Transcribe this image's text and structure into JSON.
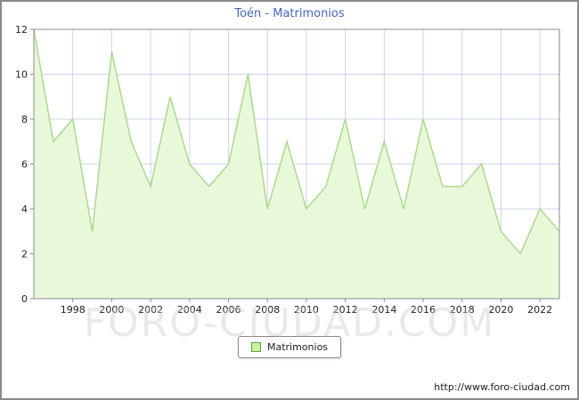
{
  "watermark": "FORO-CIUDAD.COM",
  "footer": {
    "url": "http://www.foro-ciudad.com"
  },
  "legend": {
    "label": "Matrimonios"
  },
  "colors": {
    "grid": "#ccd4ee",
    "line": "#a6d88a",
    "fill": "#e9f8d8",
    "frame": "#8a8a8a",
    "title": "#4466bb",
    "tick_text": "#222222"
  },
  "chart_data": {
    "type": "area",
    "title": "Toén - Matrimonios",
    "series_name": "Matrimonios",
    "x": [
      1996,
      1997,
      1998,
      1999,
      2000,
      2001,
      2002,
      2003,
      2004,
      2005,
      2006,
      2007,
      2008,
      2009,
      2010,
      2011,
      2012,
      2013,
      2014,
      2015,
      2016,
      2017,
      2018,
      2019,
      2020,
      2021,
      2022,
      2023
    ],
    "values": [
      12,
      7,
      8,
      3,
      11,
      7,
      5,
      9,
      6,
      5,
      6,
      10,
      4,
      7,
      4,
      5,
      8,
      4,
      7,
      4,
      8,
      5,
      5,
      6,
      3,
      2,
      4,
      3
    ],
    "xlabel": "",
    "ylabel": "",
    "ylim": [
      0,
      12
    ],
    "yticks": [
      0,
      2,
      4,
      6,
      8,
      10,
      12
    ],
    "xticks": [
      1998,
      2000,
      2002,
      2004,
      2006,
      2008,
      2010,
      2012,
      2014,
      2016,
      2018,
      2020,
      2022
    ],
    "grid": true,
    "legend_position": "bottom-center"
  }
}
